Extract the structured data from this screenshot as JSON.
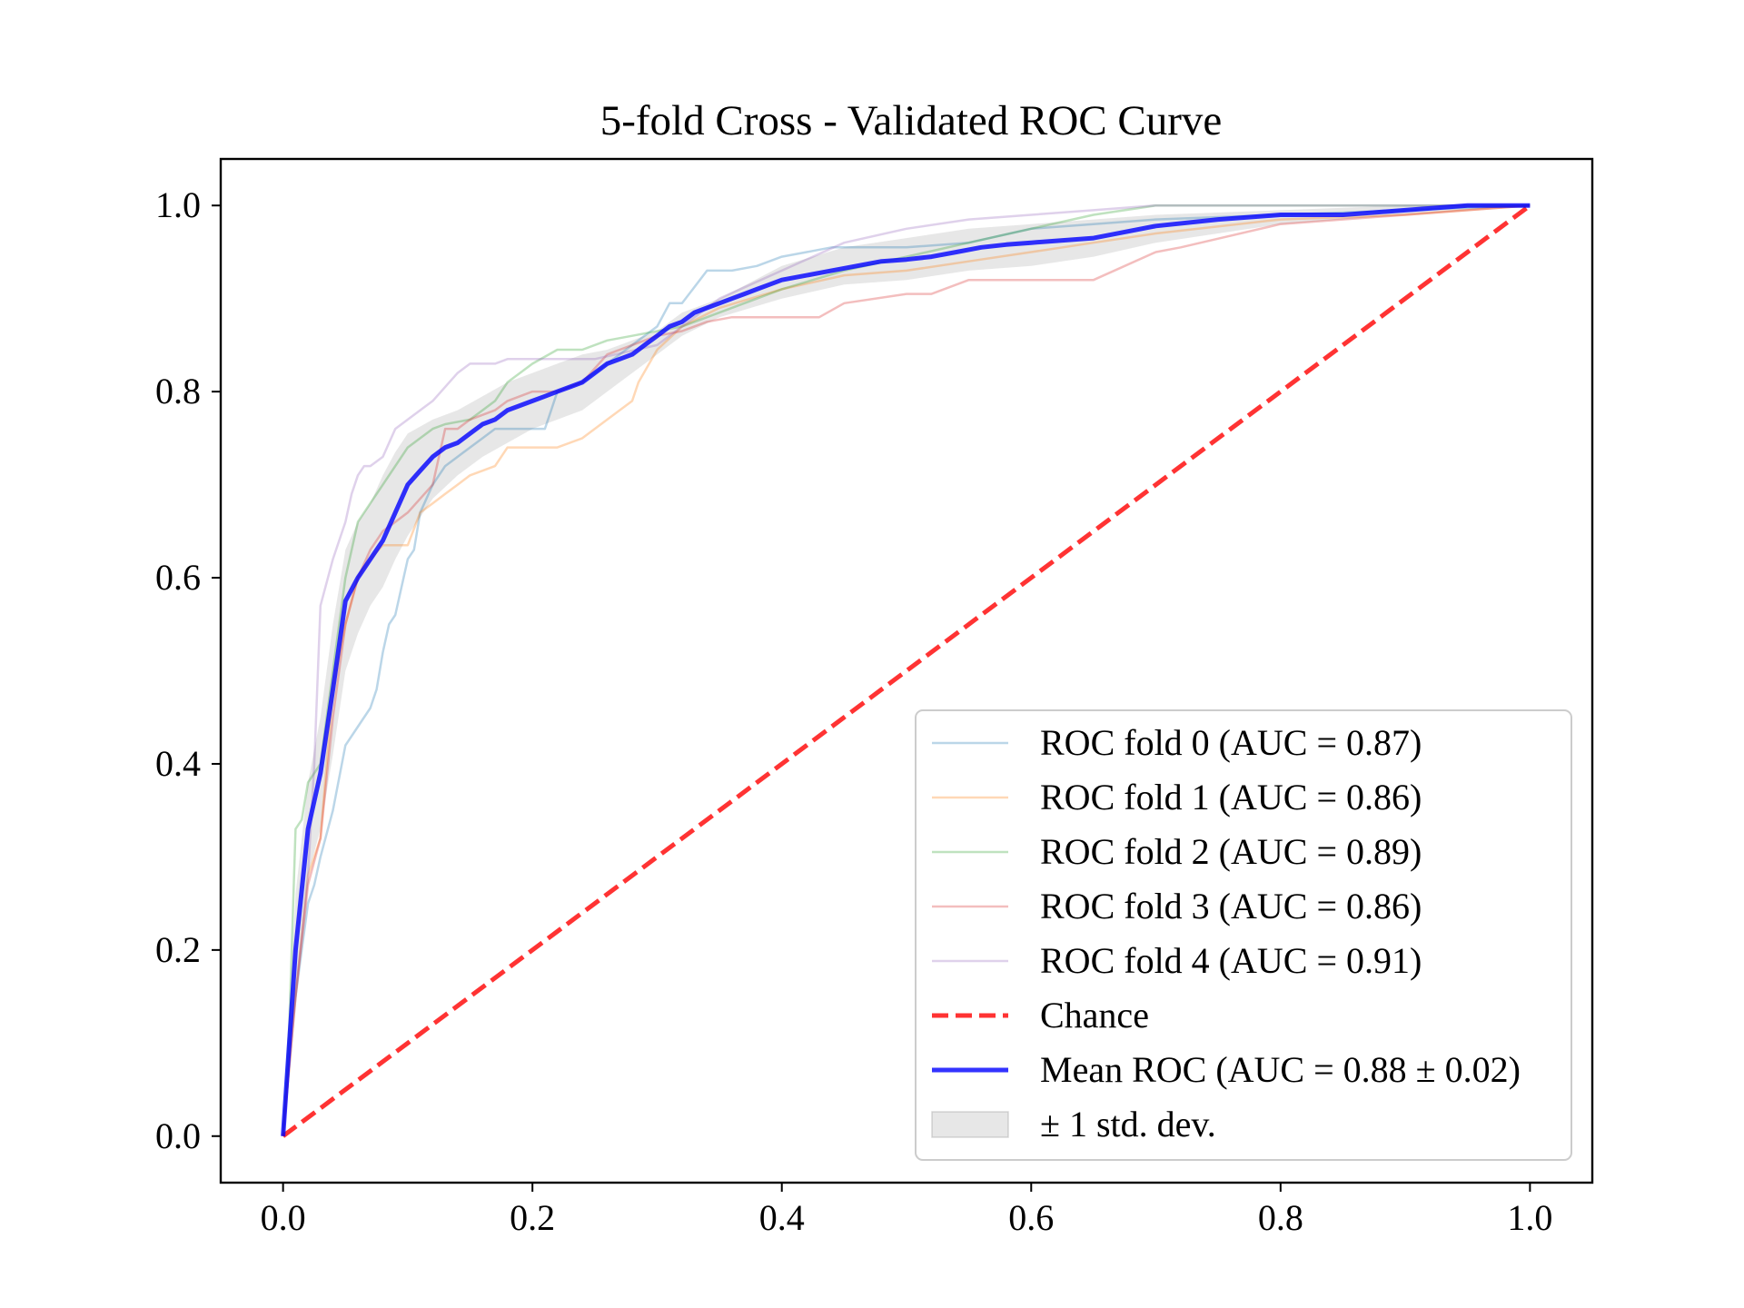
{
  "chart_data": {
    "type": "line",
    "title": "5-fold Cross - Validated ROC Curve",
    "xlabel": "",
    "ylabel": "",
    "xlim": [
      -0.05,
      1.05
    ],
    "ylim": [
      -0.05,
      1.05
    ],
    "xticks": [
      "0.0",
      "0.2",
      "0.4",
      "0.6",
      "0.8",
      "1.0"
    ],
    "yticks": [
      "0.0",
      "0.2",
      "0.4",
      "0.6",
      "0.8",
      "1.0"
    ],
    "grid": false,
    "legend_position": "lower-right",
    "series": [
      {
        "name": "ROC fold 0 (AUC = 0.87)",
        "color": "#1f77b4",
        "opacity": 0.3,
        "x": [
          0,
          0.005,
          0.01,
          0.015,
          0.02,
          0.025,
          0.03,
          0.04,
          0.05,
          0.06,
          0.07,
          0.075,
          0.08,
          0.085,
          0.09,
          0.1,
          0.105,
          0.11,
          0.12,
          0.13,
          0.14,
          0.15,
          0.16,
          0.17,
          0.18,
          0.2,
          0.21,
          0.215,
          0.22,
          0.24,
          0.26,
          0.28,
          0.3,
          0.31,
          0.32,
          0.34,
          0.36,
          0.38,
          0.4,
          0.42,
          0.44,
          0.46,
          0.5,
          0.55,
          0.6,
          0.65,
          0.7,
          0.8,
          0.9,
          1.0
        ],
        "y": [
          0,
          0.1,
          0.15,
          0.2,
          0.25,
          0.27,
          0.3,
          0.35,
          0.42,
          0.44,
          0.46,
          0.48,
          0.52,
          0.55,
          0.56,
          0.62,
          0.63,
          0.67,
          0.7,
          0.72,
          0.73,
          0.74,
          0.75,
          0.76,
          0.76,
          0.76,
          0.76,
          0.78,
          0.8,
          0.81,
          0.83,
          0.85,
          0.87,
          0.895,
          0.895,
          0.93,
          0.93,
          0.935,
          0.945,
          0.95,
          0.955,
          0.955,
          0.955,
          0.96,
          0.975,
          0.98,
          0.985,
          0.99,
          0.995,
          1.0
        ]
      },
      {
        "name": "ROC fold 1 (AUC = 0.86)",
        "color": "#ff7f0e",
        "opacity": 0.3,
        "x": [
          0,
          0.01,
          0.02,
          0.03,
          0.04,
          0.05,
          0.06,
          0.07,
          0.08,
          0.09,
          0.1,
          0.11,
          0.12,
          0.13,
          0.14,
          0.15,
          0.17,
          0.18,
          0.2,
          0.22,
          0.24,
          0.26,
          0.28,
          0.285,
          0.3,
          0.32,
          0.35,
          0.4,
          0.45,
          0.5,
          0.55,
          0.6,
          0.65,
          0.7,
          0.8,
          0.9,
          1.0
        ],
        "y": [
          0,
          0.15,
          0.28,
          0.32,
          0.48,
          0.55,
          0.6,
          0.62,
          0.635,
          0.635,
          0.635,
          0.67,
          0.68,
          0.69,
          0.7,
          0.71,
          0.72,
          0.74,
          0.74,
          0.74,
          0.75,
          0.77,
          0.79,
          0.81,
          0.845,
          0.87,
          0.89,
          0.91,
          0.925,
          0.93,
          0.94,
          0.95,
          0.96,
          0.97,
          0.985,
          0.99,
          1.0
        ]
      },
      {
        "name": "ROC fold 2 (AUC = 0.89)",
        "color": "#2ca02c",
        "opacity": 0.3,
        "x": [
          0,
          0.005,
          0.01,
          0.015,
          0.02,
          0.03,
          0.04,
          0.05,
          0.06,
          0.07,
          0.08,
          0.09,
          0.1,
          0.11,
          0.12,
          0.13,
          0.15,
          0.16,
          0.17,
          0.18,
          0.2,
          0.22,
          0.24,
          0.26,
          0.28,
          0.3,
          0.32,
          0.35,
          0.4,
          0.45,
          0.5,
          0.55,
          0.6,
          0.65,
          0.7,
          0.8,
          0.9,
          1.0
        ],
        "y": [
          0,
          0.12,
          0.33,
          0.34,
          0.38,
          0.4,
          0.5,
          0.6,
          0.66,
          0.68,
          0.7,
          0.72,
          0.74,
          0.75,
          0.76,
          0.765,
          0.77,
          0.78,
          0.79,
          0.81,
          0.83,
          0.845,
          0.845,
          0.855,
          0.86,
          0.865,
          0.87,
          0.885,
          0.91,
          0.93,
          0.945,
          0.96,
          0.975,
          0.99,
          1.0,
          1.0,
          1.0,
          1.0
        ]
      },
      {
        "name": "ROC fold 3 (AUC = 0.86)",
        "color": "#d62728",
        "opacity": 0.3,
        "x": [
          0,
          0.01,
          0.02,
          0.03,
          0.04,
          0.05,
          0.06,
          0.07,
          0.08,
          0.09,
          0.1,
          0.12,
          0.13,
          0.14,
          0.15,
          0.17,
          0.18,
          0.2,
          0.22,
          0.24,
          0.26,
          0.28,
          0.3,
          0.32,
          0.34,
          0.36,
          0.4,
          0.43,
          0.45,
          0.5,
          0.52,
          0.55,
          0.6,
          0.65,
          0.7,
          0.72,
          0.8,
          0.9,
          1.0
        ],
        "y": [
          0,
          0.15,
          0.27,
          0.32,
          0.45,
          0.55,
          0.6,
          0.63,
          0.65,
          0.66,
          0.67,
          0.7,
          0.76,
          0.76,
          0.77,
          0.78,
          0.79,
          0.8,
          0.8,
          0.81,
          0.84,
          0.85,
          0.86,
          0.865,
          0.875,
          0.88,
          0.88,
          0.88,
          0.895,
          0.905,
          0.905,
          0.92,
          0.92,
          0.92,
          0.95,
          0.955,
          0.98,
          0.99,
          1.0
        ]
      },
      {
        "name": "ROC fold 4 (AUC = 0.91)",
        "color": "#9467bd",
        "opacity": 0.3,
        "x": [
          0,
          0.01,
          0.02,
          0.025,
          0.03,
          0.04,
          0.05,
          0.055,
          0.06,
          0.065,
          0.07,
          0.08,
          0.09,
          0.1,
          0.11,
          0.12,
          0.14,
          0.15,
          0.16,
          0.17,
          0.18,
          0.2,
          0.22,
          0.25,
          0.3,
          0.32,
          0.35,
          0.4,
          0.45,
          0.5,
          0.55,
          0.6,
          0.65,
          0.7,
          0.8,
          0.9,
          1.0
        ],
        "y": [
          0,
          0.15,
          0.28,
          0.4,
          0.57,
          0.62,
          0.66,
          0.69,
          0.71,
          0.72,
          0.72,
          0.73,
          0.76,
          0.77,
          0.78,
          0.79,
          0.82,
          0.83,
          0.83,
          0.83,
          0.835,
          0.835,
          0.835,
          0.835,
          0.85,
          0.87,
          0.9,
          0.93,
          0.96,
          0.975,
          0.985,
          0.99,
          0.995,
          1.0,
          1.0,
          1.0,
          1.0
        ]
      },
      {
        "name": "Chance",
        "color": "#ff0000",
        "opacity": 0.8,
        "dashed": true,
        "x": [
          0,
          1
        ],
        "y": [
          0,
          1
        ]
      },
      {
        "name": "Mean ROC (AUC = 0.88 ± 0.02)",
        "color": "#0000ff",
        "opacity": 0.8,
        "x": [
          0,
          0.01,
          0.02,
          0.03,
          0.04,
          0.05,
          0.06,
          0.07,
          0.08,
          0.09,
          0.1,
          0.11,
          0.12,
          0.13,
          0.14,
          0.15,
          0.16,
          0.17,
          0.18,
          0.19,
          0.2,
          0.21,
          0.22,
          0.23,
          0.24,
          0.25,
          0.26,
          0.27,
          0.28,
          0.29,
          0.3,
          0.31,
          0.32,
          0.33,
          0.34,
          0.35,
          0.36,
          0.37,
          0.38,
          0.39,
          0.4,
          0.42,
          0.44,
          0.46,
          0.48,
          0.5,
          0.52,
          0.54,
          0.56,
          0.58,
          0.6,
          0.65,
          0.7,
          0.75,
          0.8,
          0.85,
          0.9,
          0.95,
          1.0
        ],
        "y": [
          0,
          0.2,
          0.33,
          0.39,
          0.48,
          0.575,
          0.6,
          0.62,
          0.64,
          0.67,
          0.7,
          0.715,
          0.73,
          0.74,
          0.745,
          0.755,
          0.765,
          0.77,
          0.78,
          0.785,
          0.79,
          0.795,
          0.8,
          0.805,
          0.81,
          0.82,
          0.83,
          0.835,
          0.84,
          0.85,
          0.86,
          0.87,
          0.875,
          0.885,
          0.89,
          0.895,
          0.9,
          0.905,
          0.91,
          0.915,
          0.92,
          0.925,
          0.93,
          0.935,
          0.94,
          0.942,
          0.945,
          0.95,
          0.955,
          0.958,
          0.96,
          0.965,
          0.978,
          0.985,
          0.99,
          0.99,
          0.995,
          1.0,
          1.0
        ]
      },
      {
        "name": "± 1 std. dev.",
        "color": "#a0a0a0",
        "opacity": 0.25,
        "band": true,
        "x": [
          0,
          0.01,
          0.02,
          0.03,
          0.04,
          0.05,
          0.06,
          0.07,
          0.08,
          0.09,
          0.1,
          0.12,
          0.14,
          0.16,
          0.18,
          0.2,
          0.22,
          0.24,
          0.26,
          0.28,
          0.3,
          0.32,
          0.35,
          0.4,
          0.45,
          0.5,
          0.55,
          0.6,
          0.65,
          0.7,
          0.8,
          0.9,
          1.0
        ],
        "upper": [
          0,
          0.26,
          0.38,
          0.45,
          0.55,
          0.63,
          0.66,
          0.68,
          0.71,
          0.735,
          0.755,
          0.77,
          0.78,
          0.795,
          0.81,
          0.82,
          0.83,
          0.84,
          0.845,
          0.855,
          0.865,
          0.885,
          0.9,
          0.935,
          0.955,
          0.965,
          0.975,
          0.98,
          0.985,
          0.99,
          0.995,
          1.0,
          1.0
        ],
        "lower": [
          0,
          0.14,
          0.28,
          0.33,
          0.41,
          0.5,
          0.54,
          0.57,
          0.59,
          0.62,
          0.645,
          0.685,
          0.71,
          0.73,
          0.745,
          0.76,
          0.77,
          0.78,
          0.8,
          0.82,
          0.84,
          0.86,
          0.88,
          0.9,
          0.915,
          0.92,
          0.93,
          0.935,
          0.945,
          0.96,
          0.98,
          0.99,
          1.0
        ]
      }
    ]
  }
}
